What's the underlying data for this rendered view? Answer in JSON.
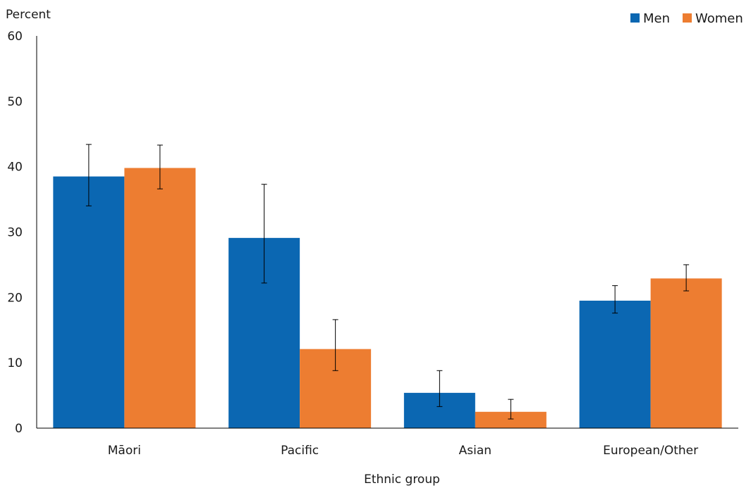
{
  "chart_data": {
    "type": "bar",
    "ylabel": "Percent",
    "xlabel": "Ethnic group",
    "ylim": [
      0,
      60
    ],
    "yticks": [
      0,
      10,
      20,
      30,
      40,
      50,
      60
    ],
    "categories": [
      "Māori",
      "Pacific",
      "Asian",
      "European/Other"
    ],
    "series": [
      {
        "name": "Men",
        "color": "#0b67b2",
        "values": [
          38.5,
          29.1,
          5.4,
          19.5
        ],
        "error_low": [
          34.0,
          22.2,
          3.3,
          17.6
        ],
        "error_high": [
          43.4,
          37.3,
          8.8,
          21.8
        ]
      },
      {
        "name": "Women",
        "color": "#ed7d31",
        "values": [
          39.8,
          12.1,
          2.5,
          22.9
        ],
        "error_low": [
          36.6,
          8.8,
          1.4,
          21.0
        ],
        "error_high": [
          43.3,
          16.6,
          4.4,
          25.0
        ]
      }
    ],
    "grid": false,
    "legend": "top-right"
  }
}
